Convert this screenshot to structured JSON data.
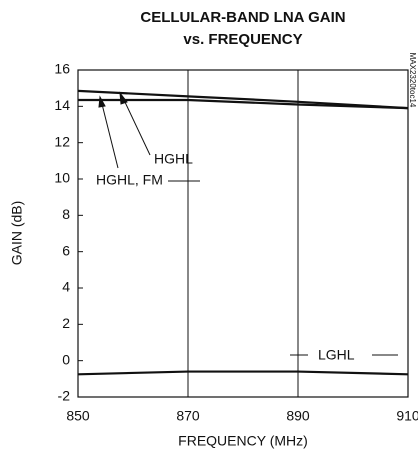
{
  "chart_data": {
    "type": "line",
    "title": [
      "CELLULAR-BAND LNA GAIN",
      "vs. FREQUENCY"
    ],
    "x_label": "FREQUENCY (MHz)",
    "y_label": "GAIN (dB)",
    "x": [
      850,
      870,
      890,
      910
    ],
    "series": [
      {
        "name": "HGHL",
        "color": "#111111",
        "values": [
          14.85,
          14.55,
          14.25,
          13.9
        ]
      },
      {
        "name": "HGHL, FM",
        "color": "#111111",
        "values": [
          14.35,
          14.35,
          14.1,
          13.9
        ]
      },
      {
        "name": "LGHL",
        "color": "#111111",
        "values": [
          -0.75,
          -0.6,
          -0.6,
          -0.75
        ]
      }
    ],
    "xlim": [
      850,
      910
    ],
    "xticks": [
      850,
      870,
      890,
      910
    ],
    "ylim": [
      -2,
      16
    ],
    "yticks": [
      -2,
      0,
      2,
      4,
      6,
      8,
      10,
      12,
      14,
      16
    ],
    "grid": "x",
    "annotations": [
      "MAX2320toc14"
    ]
  }
}
